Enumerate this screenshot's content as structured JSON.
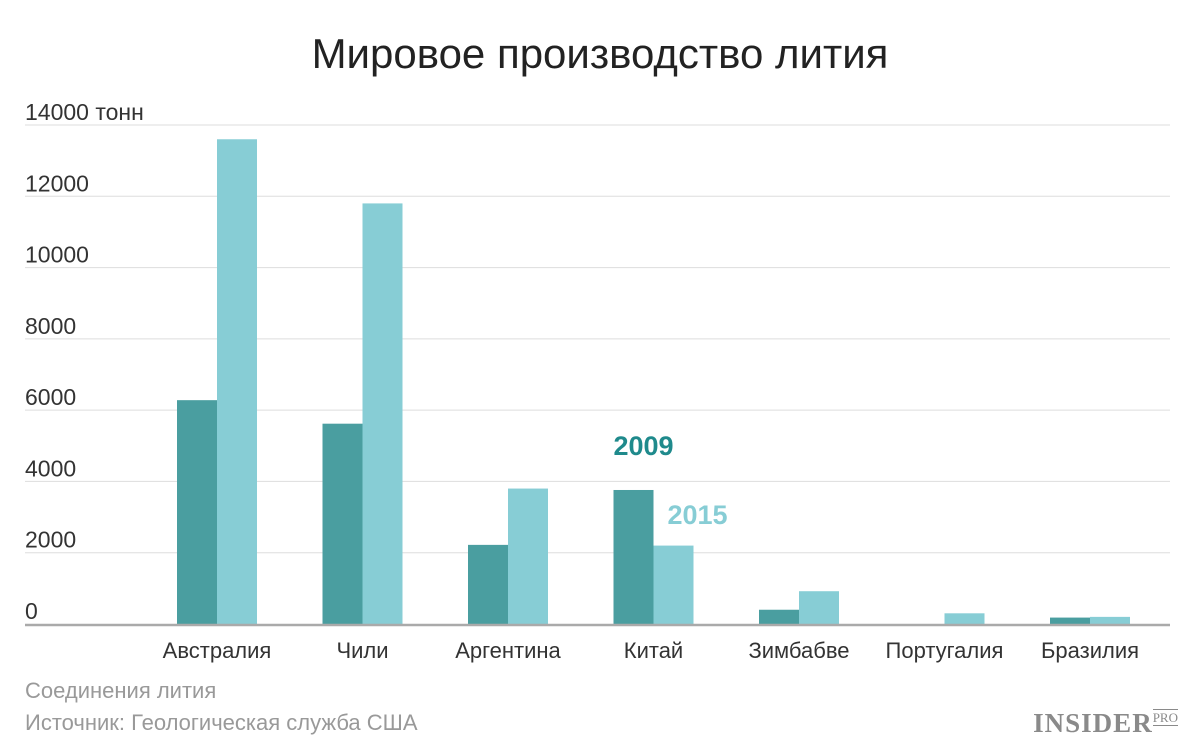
{
  "chart_data": {
    "type": "bar",
    "title": "Мировое производство лития",
    "unit_label": "тонн",
    "categories": [
      "Австралия",
      "Чили",
      "Аргентина",
      "Китай",
      "Зимбабве",
      "Португалия",
      "Бразилия"
    ],
    "series": [
      {
        "name": "2009",
        "color": "#4a9ea0",
        "label_color": "#1f8a8c",
        "values": [
          6280,
          5620,
          2220,
          3760,
          400,
          0,
          180
        ]
      },
      {
        "name": "2015",
        "color": "#87cdd5",
        "label_color": "#87cdd5",
        "values": [
          13600,
          11800,
          3800,
          2200,
          920,
          300,
          200
        ]
      }
    ],
    "yticks": [
      0,
      2000,
      4000,
      6000,
      8000,
      10000,
      12000,
      14000
    ],
    "ylim": [
      0,
      14000
    ],
    "grid": true,
    "legend": "inline-annotation near Китай"
  },
  "footer": {
    "subtitle": "Соединения лития",
    "source": "Источник: Геологическая служба США"
  },
  "logo": {
    "main": "INSIDER",
    "sup": "PRO"
  }
}
